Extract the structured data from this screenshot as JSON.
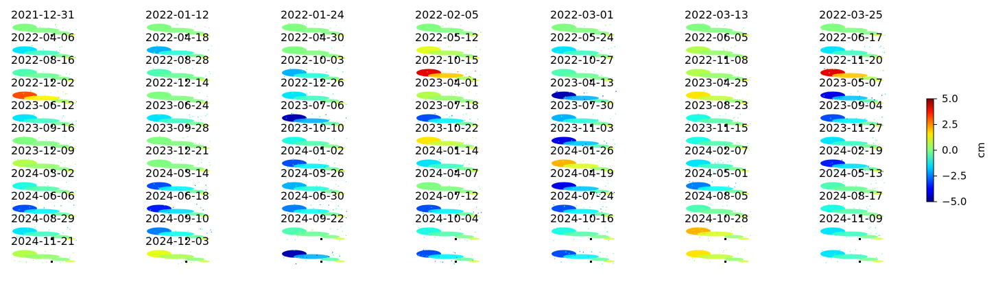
{
  "chart_data": {
    "type": "heatmap",
    "title": "",
    "layout": {
      "columns": 7,
      "rows": 12
    },
    "colormap": "jet",
    "colorbar": {
      "label": "cm",
      "range": [
        -5.0,
        5.0
      ],
      "ticks": [
        "5.0",
        "2.5",
        "0.0",
        "−2.5",
        "−5.0"
      ],
      "tick_values": [
        5.0,
        2.5,
        0.0,
        -2.5,
        -5.0
      ]
    },
    "panels": [
      {
        "date": "2021-12-31",
        "value": 0.0
      },
      {
        "date": "2022-01-12",
        "value": 0.0
      },
      {
        "date": "2022-01-24",
        "value": 0.0
      },
      {
        "date": "2022-02-05",
        "value": 0.0
      },
      {
        "date": "2022-03-01",
        "value": 0.0
      },
      {
        "date": "2022-03-13",
        "value": 0.0
      },
      {
        "date": "2022-03-25",
        "value": 0.0
      },
      {
        "date": "2022-04-06",
        "value": -1.5
      },
      {
        "date": "2022-04-18",
        "value": -2.0
      },
      {
        "date": "2022-04-30",
        "value": 0.0
      },
      {
        "date": "2022-05-12",
        "value": 1.0
      },
      {
        "date": "2022-05-24",
        "value": -1.5
      },
      {
        "date": "2022-06-05",
        "value": 0.5
      },
      {
        "date": "2022-06-17",
        "value": -1.5
      },
      {
        "date": "2022-08-16",
        "value": -0.5
      },
      {
        "date": "2022-08-28",
        "value": -0.5
      },
      {
        "date": "2022-10-03",
        "value": -2.0
      },
      {
        "date": "2022-10-15",
        "value": 4.0
      },
      {
        "date": "2022-10-27",
        "value": -0.5
      },
      {
        "date": "2022-11-08",
        "value": 0.5
      },
      {
        "date": "2022-11-20",
        "value": 4.0
      },
      {
        "date": "2022-12-02",
        "value": 3.0
      },
      {
        "date": "2022-12-14",
        "value": 0.0
      },
      {
        "date": "2022-12-26",
        "value": -1.5
      },
      {
        "date": "2023-04-01",
        "value": 0.5
      },
      {
        "date": "2023-04-13",
        "value": -4.5
      },
      {
        "date": "2023-04-25",
        "value": 1.5
      },
      {
        "date": "2023-05-07",
        "value": -4.0
      },
      {
        "date": "2023-06-12",
        "value": -1.5
      },
      {
        "date": "2023-06-24",
        "value": -1.5
      },
      {
        "date": "2023-07-06",
        "value": -4.5
      },
      {
        "date": "2023-07-18",
        "value": -3.0
      },
      {
        "date": "2023-07-30",
        "value": -2.0
      },
      {
        "date": "2023-08-23",
        "value": -1.0
      },
      {
        "date": "2023-09-04",
        "value": -3.0
      },
      {
        "date": "2023-09-16",
        "value": 0.0
      },
      {
        "date": "2023-09-28",
        "value": 0.0
      },
      {
        "date": "2023-10-10",
        "value": -1.0
      },
      {
        "date": "2023-10-22",
        "value": 1.5
      },
      {
        "date": "2023-11-03",
        "value": -4.0
      },
      {
        "date": "2023-11-15",
        "value": -1.0
      },
      {
        "date": "2023-11-27",
        "value": -1.5
      },
      {
        "date": "2023-12-09",
        "value": 0.5
      },
      {
        "date": "2023-12-21",
        "value": 0.0
      },
      {
        "date": "2024-01-02",
        "value": -3.0
      },
      {
        "date": "2024-01-14",
        "value": -1.5
      },
      {
        "date": "2024-01-26",
        "value": 2.0
      },
      {
        "date": "2024-02-07",
        "value": -1.5
      },
      {
        "date": "2024-02-19",
        "value": -3.5
      },
      {
        "date": "2024-03-02",
        "value": -1.0
      },
      {
        "date": "2024-03-14",
        "value": -3.0
      },
      {
        "date": "2024-03-26",
        "value": -2.0
      },
      {
        "date": "2024-04-07",
        "value": 0.0
      },
      {
        "date": "2024-04-19",
        "value": -4.0
      },
      {
        "date": "2024-05-01",
        "value": -2.5
      },
      {
        "date": "2024-05-13",
        "value": -0.5
      },
      {
        "date": "2024-06-06",
        "value": -3.0
      },
      {
        "date": "2024-06-18",
        "value": -3.5
      },
      {
        "date": "2024-06-30",
        "value": -2.5
      },
      {
        "date": "2024-07-12",
        "value": -3.0
      },
      {
        "date": "2024-07-24",
        "value": -3.0
      },
      {
        "date": "2024-08-05",
        "value": -0.5
      },
      {
        "date": "2024-08-17",
        "value": -1.0
      },
      {
        "date": "2024-08-29",
        "value": -1.5
      },
      {
        "date": "2024-09-10",
        "value": -2.5
      },
      {
        "date": "2024-09-22",
        "value": -0.5
      },
      {
        "date": "2024-10-04",
        "value": -1.0
      },
      {
        "date": "2024-10-16",
        "value": -1.0
      },
      {
        "date": "2024-10-28",
        "value": 2.0
      },
      {
        "date": "2024-11-09",
        "value": -1.5
      },
      {
        "date": "2024-11-21",
        "value": 0.5
      },
      {
        "date": "2024-12-03",
        "value": 1.0
      },
      {
        "date": "",
        "value": -4.5
      },
      {
        "date": "",
        "value": -3.0
      },
      {
        "date": "",
        "value": -3.0
      },
      {
        "date": "",
        "value": 1.5
      },
      {
        "date": "",
        "value": -1.5
      }
    ]
  }
}
